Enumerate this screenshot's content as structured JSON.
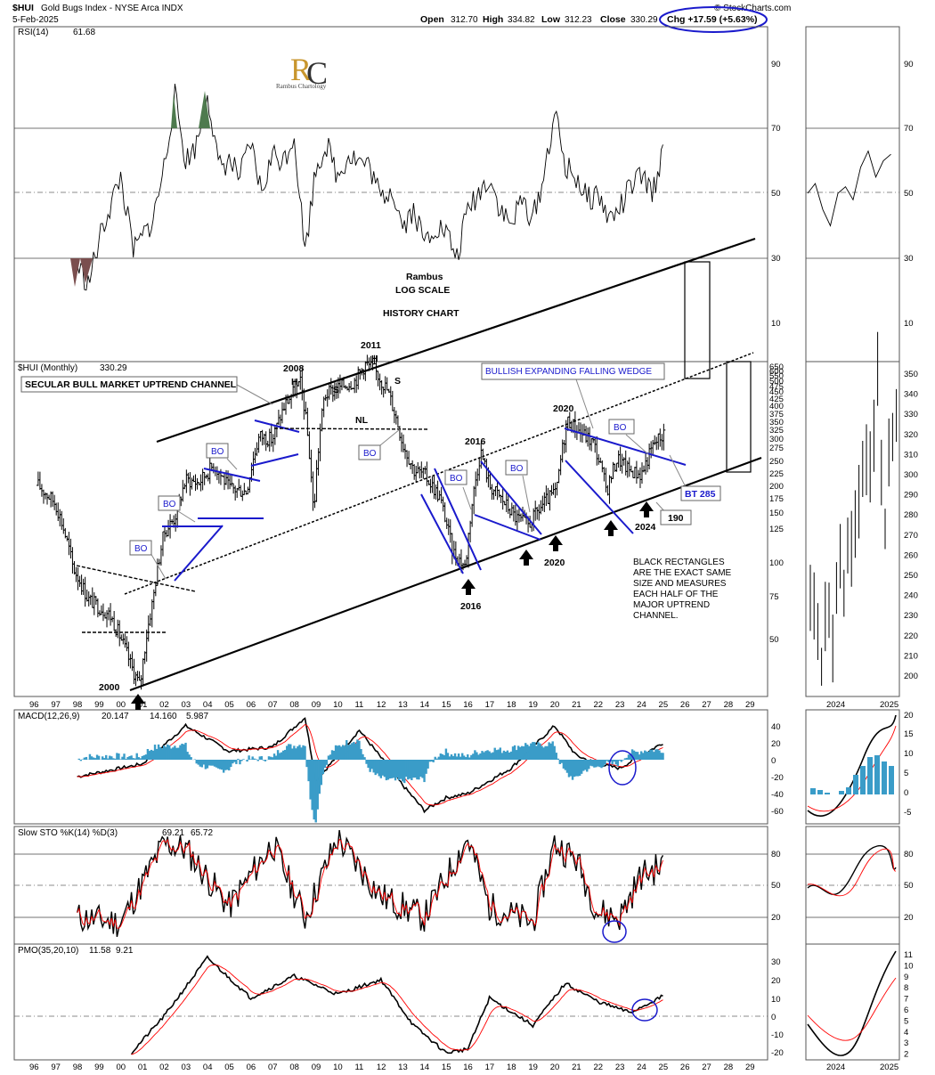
{
  "header": {
    "symbol": "$HUI",
    "name": "Gold Bugs Index - NYSE Arca INDX",
    "date": "5-Feb-2025",
    "open_label": "Open",
    "open": "312.70",
    "high_label": "High",
    "high": "334.82",
    "low_label": "Low",
    "low": "312.23",
    "close_label": "Close",
    "close": "330.29",
    "chg": "Chg +17.59 (+5.63%)",
    "watermark": "© StockCharts.com"
  },
  "colors": {
    "price": "#000000",
    "trend": "#000000",
    "pattern": "#1a1acc",
    "signal": "#ff0000",
    "histogram": "#3a9cc8",
    "rsi_high": "#4e7a4e",
    "rsi_low": "#7a4e4e"
  },
  "panels": {
    "rsi": {
      "label": "RSI(14)",
      "value": "61.68",
      "ticks": [
        "90",
        "70",
        "50",
        "30",
        "10"
      ]
    },
    "price": {
      "label": "$HUI (Monthly)",
      "value": "330.29",
      "ticks_left": [
        "650",
        "600",
        "550",
        "500",
        "475",
        "450",
        "425",
        "400",
        "375",
        "350",
        "325",
        "300",
        "275",
        "250",
        "225",
        "200",
        "175",
        "150",
        "125",
        "100",
        "75",
        "50"
      ],
      "ticks_right": [
        "350",
        "340",
        "330",
        "320",
        "310",
        "300",
        "290",
        "280",
        "270",
        "260",
        "250",
        "240",
        "230",
        "220",
        "210",
        "200"
      ]
    },
    "macd": {
      "label": "MACD(12,26,9)",
      "v1": "20.147",
      "v2": "14.160",
      "v3": "5.987",
      "ticks": [
        "40",
        "20",
        "0",
        "-20",
        "-40",
        "-60"
      ],
      "ticks_right": [
        "20",
        "15",
        "10",
        "5",
        "0",
        "-5"
      ]
    },
    "sto": {
      "label": "Slow STO %K(14) %D(3)",
      "k": "69.21",
      "d": "65.72",
      "ticks": [
        "80",
        "50",
        "20"
      ]
    },
    "pmo": {
      "label": "PMO(35,20,10)",
      "v1": "11.58",
      "v2": "9.21",
      "ticks": [
        "30",
        "20",
        "10",
        "0",
        "-10",
        "-20"
      ],
      "ticks_right": [
        "11",
        "10",
        "9",
        "8",
        "7",
        "6",
        "5",
        "4",
        "3",
        "2"
      ]
    }
  },
  "logo": {
    "brand": "Rambus Chartology"
  },
  "x_axis": {
    "years": [
      "96",
      "97",
      "98",
      "99",
      "00",
      "01",
      "02",
      "03",
      "04",
      "05",
      "06",
      "07",
      "08",
      "09",
      "10",
      "11",
      "12",
      "13",
      "14",
      "15",
      "16",
      "17",
      "18",
      "19",
      "20",
      "21",
      "22",
      "23",
      "24",
      "25",
      "26",
      "27",
      "28",
      "29"
    ],
    "right_years": [
      "2024",
      "2025"
    ]
  },
  "annotations": {
    "rambus": "Rambus",
    "log_scale": "LOG SCALE",
    "history": "HISTORY CHART",
    "secular": "SECULAR BULL MARKET UPTREND CHANNEL",
    "bullish_wedge": "BULLISH EXPANDING FALLING WEDGE",
    "y2008": "2008",
    "y2011": "2011",
    "h": "H",
    "s": "S",
    "nl": "NL",
    "y2016": "2016",
    "y2020": "2020",
    "y2000": "2000",
    "y2024": "2024",
    "bo": "BO",
    "bt": "BT 285",
    "v190": "190",
    "black_rect": [
      "BLACK RECTANGLES",
      "ARE THE EXACT SAME",
      "SIZE AND MEASURES",
      "EACH HALF OF THE",
      "MAJOR UPTREND",
      "CHANNEL."
    ]
  },
  "chart_data": {
    "type": "line",
    "title": "$HUI Gold Bugs Index - NYSE Arca INDX (Monthly, log scale)",
    "x_range": [
      1996,
      2029
    ],
    "price_series": {
      "name": "$HUI (Monthly)",
      "x": [
        1996.2,
        1997,
        1997.8,
        1998.5,
        1999.5,
        2000.5,
        2000.9,
        2001.5,
        2002,
        2002.5,
        2003,
        2003.6,
        2004.3,
        2005,
        2005.8,
        2006.4,
        2007,
        2007.6,
        2008.3,
        2008.9,
        2009.4,
        2010,
        2010.8,
        2011.3,
        2011.7,
        2012.3,
        2013,
        2013.5,
        2014,
        2014.7,
        2015.3,
        2015.9,
        2016.6,
        2017,
        2017.6,
        2018.2,
        2018.8,
        2019.5,
        2020.1,
        2020.6,
        2021.2,
        2021.8,
        2022.4,
        2022.9,
        2023.4,
        2024,
        2024.6,
        2025.1
      ],
      "y": [
        210,
        180,
        105,
        80,
        70,
        45,
        38,
        80,
        140,
        160,
        220,
        215,
        250,
        205,
        200,
        320,
        310,
        420,
        500,
        160,
        450,
        480,
        510,
        590,
        560,
        470,
        300,
        240,
        230,
        190,
        120,
        105,
        280,
        210,
        185,
        160,
        150,
        180,
        200,
        365,
        330,
        300,
        200,
        265,
        240,
        230,
        300,
        330
      ]
    },
    "rsi_series": {
      "name": "RSI(14)",
      "x": [
        1998,
        1998.5,
        1999.2,
        2000,
        2000.6,
        2001.5,
        2002,
        2002.5,
        2003,
        2003.5,
        2004,
        2004.5,
        2005,
        2005.5,
        2006,
        2006.5,
        2007,
        2007.5,
        2008,
        2008.5,
        2009,
        2009.5,
        2010,
        2010.5,
        2011,
        2011.5,
        2012,
        2012.5,
        2013,
        2013.5,
        2014,
        2014.5,
        2015,
        2015.5,
        2016,
        2016.5,
        2017,
        2017.5,
        2018,
        2018.5,
        2019,
        2019.5,
        2020,
        2020.5,
        2021,
        2021.5,
        2022,
        2022.5,
        2023,
        2023.5,
        2024,
        2024.5,
        2025
      ],
      "y": [
        28,
        22,
        40,
        55,
        32,
        42,
        58,
        80,
        60,
        65,
        82,
        58,
        60,
        55,
        65,
        50,
        62,
        60,
        68,
        32,
        58,
        65,
        55,
        62,
        60,
        58,
        48,
        52,
        40,
        45,
        35,
        40,
        38,
        30,
        45,
        50,
        55,
        45,
        40,
        48,
        42,
        55,
        75,
        58,
        55,
        48,
        50,
        42,
        45,
        52,
        55,
        50,
        62
      ]
    },
    "macd_series": {
      "name": "MACD",
      "x": [
        1998,
        2001,
        2003,
        2005,
        2007,
        2008.5,
        2009,
        2011,
        2013,
        2014,
        2015,
        2016,
        2018,
        2020,
        2021,
        2022,
        2023,
        2024,
        2025
      ],
      "y": [
        -20,
        -5,
        40,
        10,
        15,
        50,
        -25,
        35,
        -30,
        -60,
        -45,
        -40,
        -10,
        40,
        5,
        -5,
        -10,
        5,
        20
      ]
    },
    "sto_series": {
      "name": "Slow STO %K",
      "x": [
        1998,
        2000,
        2002,
        2003,
        2005,
        2007,
        2008.5,
        2010,
        2012,
        2014,
        2016,
        2017,
        2019,
        2020,
        2021,
        2022,
        2023,
        2024,
        2025
      ],
      "y": [
        20,
        15,
        90,
        85,
        30,
        90,
        20,
        95,
        40,
        20,
        95,
        30,
        15,
        90,
        75,
        25,
        20,
        60,
        69
      ]
    },
    "pmo_series": {
      "name": "PMO",
      "x": [
        2000.5,
        2002,
        2004,
        2006,
        2008,
        2010,
        2012,
        2013.5,
        2015,
        2016,
        2017,
        2019,
        2020.5,
        2022,
        2023.5,
        2024.5,
        2025
      ],
      "y": [
        -20,
        0,
        32,
        10,
        22,
        12,
        20,
        -5,
        -20,
        -18,
        10,
        -5,
        18,
        8,
        2,
        8,
        11
      ]
    }
  }
}
